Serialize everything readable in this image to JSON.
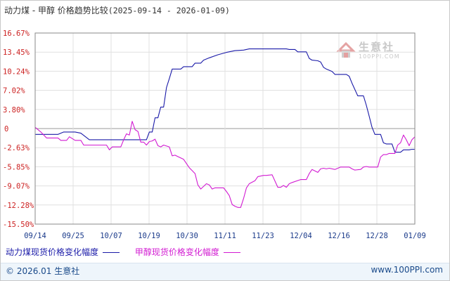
{
  "chart_data": {
    "type": "line",
    "title": "动力煤 - 甲醇 价格趋势比较",
    "date_range": "(2025-09-14 - 2026-01-09)",
    "x_ticks": [
      "09/14",
      "09/25",
      "10/07",
      "10/19",
      "10/30",
      "11/11",
      "11/23",
      "12/04",
      "12/16",
      "12/28",
      "01/09"
    ],
    "y_ticks": [
      "16.67%",
      "13.45%",
      "10.24%",
      "7.02%",
      "3.80%",
      "0",
      "-2.63%",
      "-5.85%",
      "-9.07%",
      "-12.28%",
      "-15.50%"
    ],
    "ylim": [
      -15.5,
      16.67
    ],
    "grid": true,
    "legend_position": "bottom-left",
    "series": [
      {
        "name": "动力煤现货价格变化幅度",
        "color": "#1a1aa8",
        "values": [
          [
            0,
            -0.4
          ],
          [
            4,
            -0.4
          ],
          [
            8,
            -0.4
          ],
          [
            10,
            0.0
          ],
          [
            14,
            0.0
          ],
          [
            16,
            -0.2
          ],
          [
            19,
            -1.3
          ],
          [
            26,
            -1.3
          ],
          [
            36,
            -1.3
          ],
          [
            39,
            -1.3
          ],
          [
            40,
            0.0
          ],
          [
            41,
            0.0
          ],
          [
            42,
            2.4
          ],
          [
            43,
            2.4
          ],
          [
            44,
            4.2
          ],
          [
            45,
            4.2
          ],
          [
            46,
            7.5
          ],
          [
            47,
            9.0
          ],
          [
            48,
            10.6
          ],
          [
            51,
            10.6
          ],
          [
            52,
            11.0
          ],
          [
            55,
            11.0
          ],
          [
            56,
            11.6
          ],
          [
            58,
            11.6
          ],
          [
            59,
            12.1
          ],
          [
            61,
            12.5
          ],
          [
            64,
            13.0
          ],
          [
            67,
            13.4
          ],
          [
            70,
            13.7
          ],
          [
            73,
            13.8
          ],
          [
            75,
            14.0
          ],
          [
            88,
            14.0
          ],
          [
            89,
            13.9
          ],
          [
            91,
            13.9
          ],
          [
            92,
            13.5
          ],
          [
            95,
            13.5
          ],
          [
            96,
            12.4
          ],
          [
            97,
            12.1
          ],
          [
            99,
            12.0
          ],
          [
            100,
            11.8
          ],
          [
            101,
            10.9
          ],
          [
            102,
            10.6
          ],
          [
            104,
            10.2
          ],
          [
            105,
            9.7
          ],
          [
            109,
            9.7
          ],
          [
            110,
            9.4
          ],
          [
            111,
            8.2
          ],
          [
            113,
            6.1
          ],
          [
            115,
            6.1
          ],
          [
            116,
            4.5
          ],
          [
            117,
            2.7
          ],
          [
            118,
            0.8
          ],
          [
            119,
            -0.4
          ],
          [
            121,
            -0.4
          ],
          [
            122,
            -1.8
          ],
          [
            123,
            -2.0
          ],
          [
            125,
            -2.0
          ],
          [
            126,
            -3.4
          ],
          [
            127,
            -3.4
          ],
          [
            128,
            -3.4
          ],
          [
            129,
            -3.0
          ],
          [
            130,
            -3.0
          ],
          [
            131,
            -3.0
          ],
          [
            132,
            -2.9
          ],
          [
            133,
            -2.9
          ]
        ]
      },
      {
        "name": "甲醇现货价格变化幅度",
        "color": "#d21bd2",
        "values": [
          [
            0,
            0.8
          ],
          [
            2,
            0.0
          ],
          [
            4,
            -1.0
          ],
          [
            8,
            -1.0
          ],
          [
            9,
            -1.4
          ],
          [
            11,
            -1.4
          ],
          [
            12,
            -0.8
          ],
          [
            14,
            -1.4
          ],
          [
            16,
            -1.4
          ],
          [
            17,
            -2.2
          ],
          [
            24,
            -2.2
          ],
          [
            25,
            -2.2
          ],
          [
            26,
            -3.0
          ],
          [
            27,
            -2.5
          ],
          [
            30,
            -2.5
          ],
          [
            31,
            -1.3
          ],
          [
            32,
            -0.3
          ],
          [
            33,
            -0.5
          ],
          [
            34,
            1.8
          ],
          [
            35,
            0.4
          ],
          [
            36,
            0.1
          ],
          [
            37,
            -1.7
          ],
          [
            38,
            -1.7
          ],
          [
            39,
            -2.2
          ],
          [
            40,
            -1.6
          ],
          [
            41,
            -1.5
          ],
          [
            42,
            -1.2
          ],
          [
            43,
            -2.3
          ],
          [
            44,
            -2.5
          ],
          [
            45,
            -2.2
          ],
          [
            47,
            -2.5
          ],
          [
            48,
            -4.0
          ],
          [
            49,
            -3.9
          ],
          [
            52,
            -4.6
          ],
          [
            54,
            -6.0
          ],
          [
            55,
            -6.5
          ],
          [
            56,
            -7.0
          ],
          [
            57,
            -8.9
          ],
          [
            58,
            -9.6
          ],
          [
            60,
            -8.7
          ],
          [
            61,
            -8.9
          ],
          [
            62,
            -9.6
          ],
          [
            63,
            -9.4
          ],
          [
            66,
            -9.4
          ],
          [
            67,
            -10.0
          ],
          [
            68,
            -10.7
          ],
          [
            69,
            -12.2
          ],
          [
            70,
            -12.5
          ],
          [
            71,
            -12.7
          ],
          [
            72,
            -12.7
          ],
          [
            73,
            -11.2
          ],
          [
            74,
            -9.4
          ],
          [
            75,
            -8.7
          ],
          [
            77,
            -8.2
          ],
          [
            78,
            -7.5
          ],
          [
            80,
            -7.3
          ],
          [
            81,
            -7.3
          ],
          [
            83,
            -7.2
          ],
          [
            85,
            -9.3
          ],
          [
            86,
            -9.3
          ],
          [
            87,
            -9.0
          ],
          [
            88,
            -9.3
          ],
          [
            89,
            -8.7
          ],
          [
            90,
            -8.5
          ],
          [
            93,
            -8.0
          ],
          [
            95,
            -8.0
          ],
          [
            96,
            -7.0
          ],
          [
            97,
            -6.3
          ],
          [
            99,
            -6.8
          ],
          [
            100,
            -6.2
          ],
          [
            101,
            -6.1
          ],
          [
            102,
            -6.2
          ],
          [
            103,
            -6.1
          ],
          [
            105,
            -6.3
          ],
          [
            106,
            -6.1
          ],
          [
            107,
            -5.9
          ],
          [
            110,
            -5.9
          ],
          [
            111,
            -6.2
          ],
          [
            112,
            -6.4
          ],
          [
            114,
            -6.3
          ],
          [
            115,
            -5.9
          ],
          [
            116,
            -5.8
          ],
          [
            117,
            -5.9
          ],
          [
            120,
            -5.9
          ],
          [
            121,
            -4.2
          ],
          [
            122,
            -3.8
          ],
          [
            123,
            -3.8
          ],
          [
            124,
            -3.6
          ],
          [
            126,
            -3.6
          ],
          [
            127,
            -2.2
          ],
          [
            128,
            -1.8
          ],
          [
            129,
            -0.5
          ],
          [
            130,
            -1.3
          ],
          [
            131,
            -2.3
          ],
          [
            132,
            -1.3
          ],
          [
            133,
            -0.8
          ]
        ]
      }
    ]
  },
  "legend": {
    "series1_label": "动力煤现货价格变化幅度",
    "series2_label": "甲醇现货价格变化幅度"
  },
  "logo": {
    "text": "生意社",
    "subtext": "100PPI.COM"
  },
  "footer": {
    "copyright": "© 2026.01 生意社",
    "site": "www.100PPI.com"
  }
}
